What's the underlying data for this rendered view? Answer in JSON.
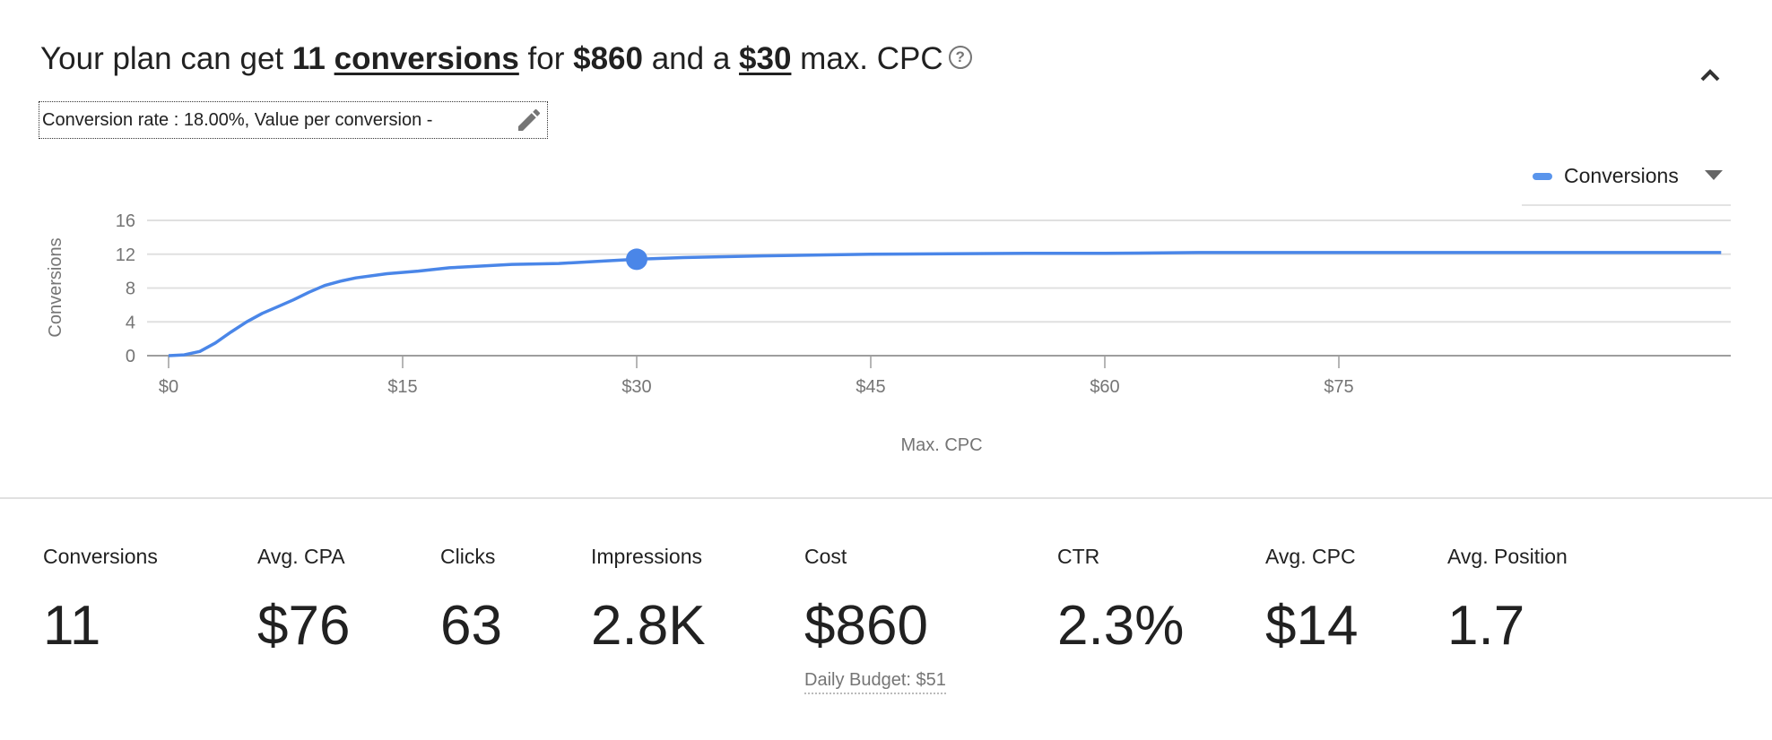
{
  "headline": {
    "prefix": "Your plan can get ",
    "conversions_value": "11",
    "conversions_word": "conversions",
    "mid": " for ",
    "cost": "$860",
    "and": " and a ",
    "max_cpc": "$30",
    "suffix": " max. CPC",
    "help_icon": "?"
  },
  "rate_box": {
    "text": "Conversion rate : 18.00%, Value per conversion -"
  },
  "legend": {
    "label": "Conversions"
  },
  "colors": {
    "accent": "#4a86e8",
    "grid": "#e0e0e0",
    "text": "#212121"
  },
  "chart_data": {
    "type": "line",
    "title": "",
    "xlabel": "Max. CPC",
    "ylabel": "Conversions",
    "xlim": [
      0,
      100
    ],
    "ylim": [
      0,
      16
    ],
    "x_ticks": [
      0,
      15,
      30,
      45,
      60,
      75
    ],
    "x_tick_labels": [
      "$0",
      "$15",
      "$30",
      "$45",
      "$60",
      "$75"
    ],
    "y_ticks": [
      0,
      4,
      8,
      12,
      16
    ],
    "y_tick_labels": [
      "0",
      "4",
      "8",
      "12",
      "16"
    ],
    "grid": true,
    "legend_position": "top-right",
    "series": [
      {
        "name": "Conversions",
        "x": [
          0,
          1,
          2,
          3,
          4,
          5,
          6,
          7,
          8,
          9,
          10,
          11,
          12,
          14,
          16,
          18,
          20,
          22,
          25,
          28,
          30,
          33,
          38,
          45,
          55,
          60,
          66,
          80,
          99.5
        ],
        "y": [
          0,
          0.1,
          0.5,
          1.5,
          2.8,
          4,
          5,
          5.8,
          6.6,
          7.5,
          8.3,
          8.8,
          9.2,
          9.7,
          10,
          10.4,
          10.6,
          10.8,
          10.9,
          11.2,
          11.4,
          11.6,
          11.8,
          12,
          12.1,
          12.1,
          12.2,
          12.2,
          12.2
        ]
      }
    ],
    "highlight_point": {
      "x": 30,
      "y": 11.4
    }
  },
  "stats": [
    {
      "label": "Conversions",
      "value": "11"
    },
    {
      "label": "Avg. CPA",
      "value": "$76"
    },
    {
      "label": "Clicks",
      "value": "63"
    },
    {
      "label": "Impressions",
      "value": "2.8K"
    },
    {
      "label": "Cost",
      "value": "$860"
    },
    {
      "label": "CTR",
      "value": "2.3%"
    },
    {
      "label": "Avg. CPC",
      "value": "$14"
    },
    {
      "label": "Avg. Position",
      "value": "1.7"
    }
  ],
  "daily_budget": "Daily Budget: $51"
}
